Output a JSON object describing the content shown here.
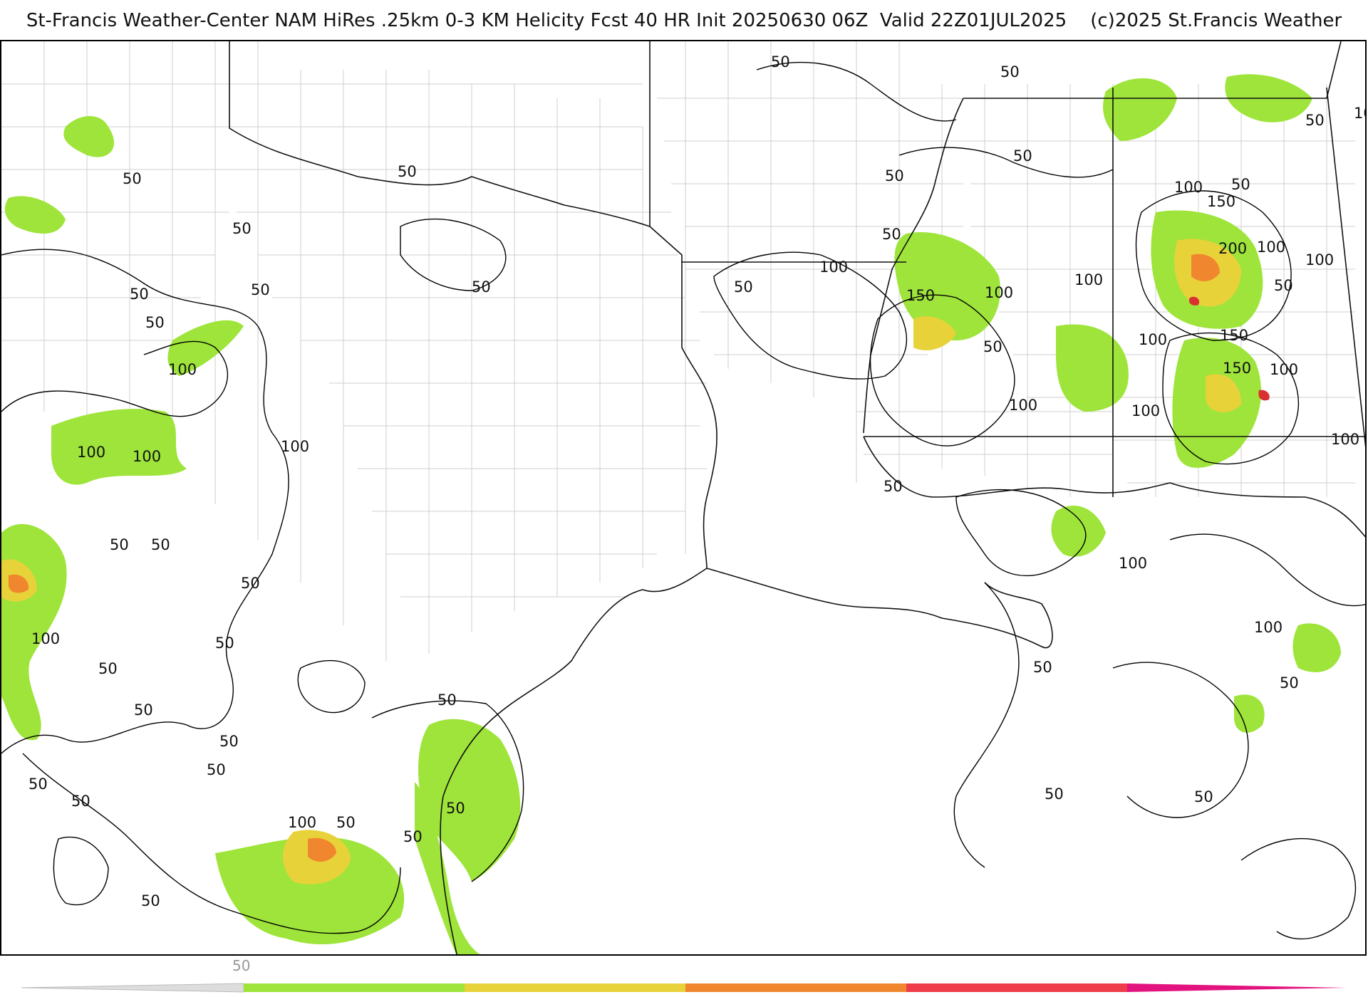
{
  "title": "St-Francis Weather-Center NAM HiRes .25km 0-3 KM Helicity Fcst 40 HR Init 20250630 06Z  Valid 22Z01JUL2025    (c)2025 St.Francis Weather",
  "legend": {
    "start_label": "50",
    "colors": [
      "#cccccc",
      "#9ee43a",
      "#e8d23a",
      "#f0872e",
      "#ef3c4a",
      "#e2127e"
    ]
  },
  "contour_labels": [
    "50",
    "100",
    "150",
    "200"
  ],
  "colors": {
    "state_border": "#111111",
    "county_border": "#c8c8c8",
    "contour": "#000000",
    "fill_low": "#9ee43a",
    "fill_mid": "#e8d23a",
    "fill_high": "#f0872e",
    "fill_max": "#d93030"
  }
}
